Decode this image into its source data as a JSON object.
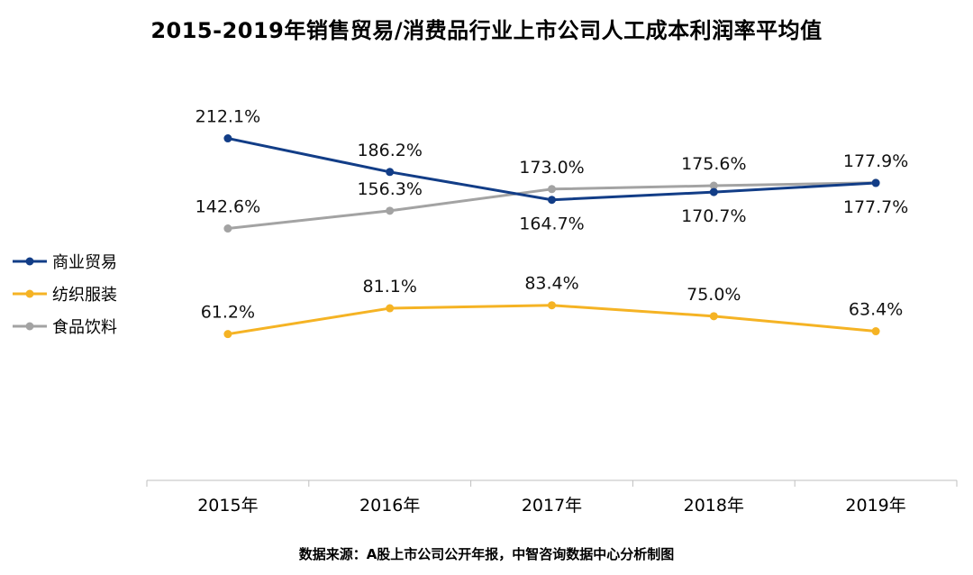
{
  "chart_data": {
    "type": "line",
    "title": "2015-2019年销售贸易/消费品行业上市公司人工成本利润率平均值",
    "categories": [
      "2015年",
      "2016年",
      "2017年",
      "2018年",
      "2019年"
    ],
    "series": [
      {
        "name": "商业贸易",
        "color": "#123d87",
        "values": [
          212.1,
          186.2,
          164.7,
          170.7,
          177.7
        ],
        "labels": [
          "212.1%",
          "186.2%",
          "164.7%",
          "170.7%",
          "177.7%"
        ]
      },
      {
        "name": "纺织服装",
        "color": "#f5b324",
        "values": [
          61.2,
          81.1,
          83.4,
          75.0,
          63.4
        ],
        "labels": [
          "61.2%",
          "81.1%",
          "83.4%",
          "75.0%",
          "63.4%"
        ]
      },
      {
        "name": "食品饮料",
        "color": "#a3a3a3",
        "values": [
          142.6,
          156.3,
          173.0,
          175.6,
          177.9
        ],
        "labels": [
          "142.6%",
          "156.3%",
          "173.0%",
          "175.6%",
          "177.9%"
        ]
      }
    ],
    "legend_position": "left",
    "grid": false,
    "ylabel": "",
    "xlabel": ""
  },
  "source_note": "数据来源：A股上市公司公开年报，中智咨询数据中心分析制图"
}
